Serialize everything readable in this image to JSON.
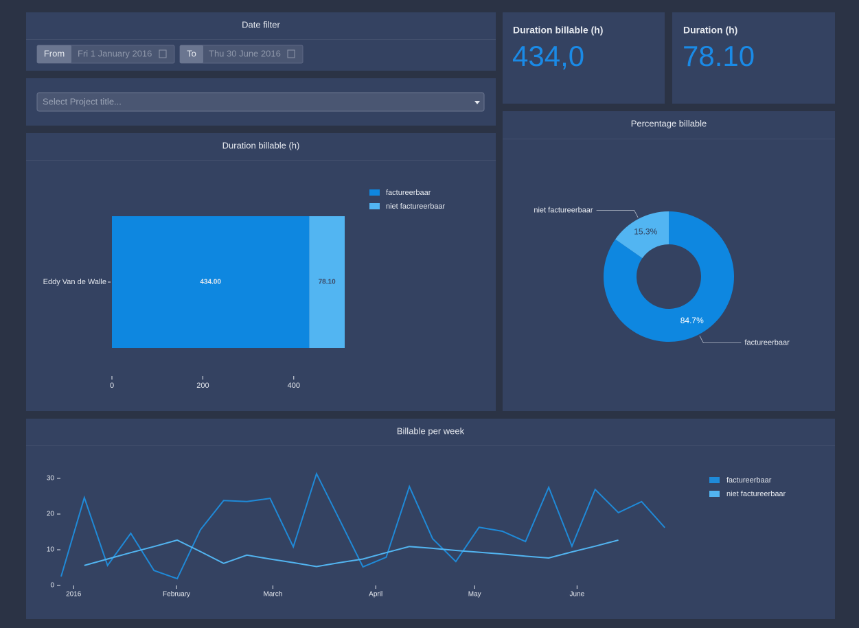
{
  "date_filter": {
    "title": "Date filter",
    "from_label": "From",
    "from_value": "Fri 1 January 2016",
    "to_label": "To",
    "to_value": "Thu 30 June 2016"
  },
  "project_select": {
    "placeholder": "Select Project title..."
  },
  "kpis": [
    {
      "title": "Duration billable (h)",
      "value": "434,0"
    },
    {
      "title": "Duration (h)",
      "value": "78.10"
    }
  ],
  "bar_chart": {
    "type": "bar",
    "orientation": "horizontal",
    "stacked": true,
    "title": "Duration billable (h)",
    "categories": [
      "Eddy Van de Walle"
    ],
    "series": [
      {
        "name": "factureerbaar",
        "color": "#0e87e0",
        "values": [
          434
        ],
        "value_labels": [
          "434.00"
        ]
      },
      {
        "name": "niet factureerbaar",
        "color": "#52b5f2",
        "values": [
          78.1
        ],
        "value_labels": [
          "78.10"
        ]
      }
    ],
    "xlim": [
      0,
      512.1
    ],
    "xticks": [
      0,
      200,
      400
    ]
  },
  "pie_chart": {
    "type": "pie",
    "donut": true,
    "title": "Percentage billable",
    "categories": [
      "factureerbaar",
      "niet factureerbaar"
    ],
    "values": [
      84.7,
      15.3
    ],
    "value_labels": [
      "84.7%",
      "15.3%"
    ],
    "colors": [
      "#0e87e0",
      "#52b5f2"
    ]
  },
  "line_chart": {
    "type": "line",
    "title": "Billable per week",
    "categories": [
      null,
      null,
      null,
      null,
      null,
      null,
      null,
      null,
      null,
      null,
      null,
      null,
      null,
      null,
      null,
      null,
      null,
      null,
      null,
      null,
      null,
      null,
      null,
      null,
      null,
      null,
      null,
      null
    ],
    "series": [
      {
        "name": "factureerbaar",
        "color": "#1f8ad8",
        "values": [
          2.5,
          24.6,
          5.6,
          14.6,
          4.2,
          1.9,
          15.6,
          23.8,
          23.5,
          24.4,
          10.8,
          31.3,
          18.3,
          5.2,
          7.9,
          27.7,
          13.1,
          6.7,
          16.3,
          15.2,
          12.3,
          27.5,
          11,
          26.9,
          20.4,
          23.5,
          16.2,
          null
        ]
      },
      {
        "name": "niet factureerbaar",
        "color": "#52b4f0",
        "values": [
          null,
          5.6,
          7.4,
          9.2,
          10.9,
          12.7,
          9.5,
          6.2,
          8.5,
          7.4,
          6.4,
          5.3,
          6.4,
          7.4,
          9.2,
          10.9,
          10.4,
          9.8,
          9.3,
          8.8,
          8.2,
          7.7,
          9.4,
          11,
          12.7,
          null,
          null,
          null
        ]
      }
    ],
    "xlim": [
      0,
      27
    ],
    "xticks": [
      {
        "value": 0.54,
        "label": "2016"
      },
      {
        "value": 4.97,
        "label": "February"
      },
      {
        "value": 9.12,
        "label": "March"
      },
      {
        "value": 13.55,
        "label": "April"
      },
      {
        "value": 17.81,
        "label": "May"
      },
      {
        "value": 22.22,
        "label": "June"
      }
    ],
    "ylim": [
      0,
      32
    ],
    "yticks": [
      0,
      10,
      20,
      30
    ]
  }
}
